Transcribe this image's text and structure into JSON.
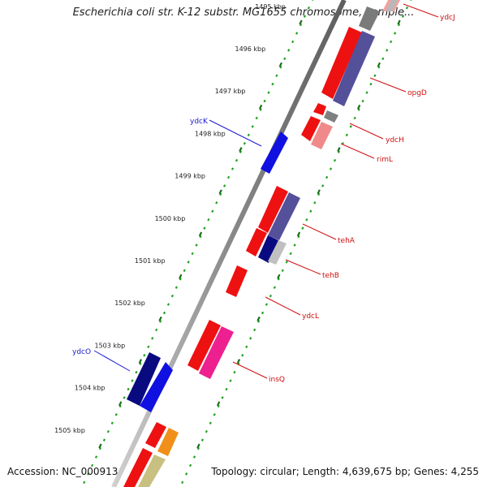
{
  "title": "Escherichia coli str. K-12 substr. MG1655 chromosome, comple...",
  "accession_label": "Accession: NC_000913",
  "summary_label": "Topology: circular; Length: 4,639,675 bp; Genes: 4,255",
  "colors": {
    "backbone": "#8a8a8a",
    "tick_major": "#1a6f1a",
    "tick_minor": "#1fa01f",
    "forward_gene": "#1010e0",
    "forward_gene_dark": "#0a0a80",
    "reverse_gene": "#ee1111",
    "reverse_gene_pink": "#f06a8a",
    "reverse_gene_slate": "#55509a",
    "reverse_gene_grey": "#888888",
    "reverse_gene_orange": "#f0901a",
    "reverse_gene_khaki": "#c8c080",
    "label_forward": "#1a1ad0",
    "label_reverse": "#d01010"
  },
  "kbp_labels": [
    {
      "text": "1495 kbp",
      "kbp": 1495
    },
    {
      "text": "1496 kbp",
      "kbp": 1496
    },
    {
      "text": "1497 kbp",
      "kbp": 1497
    },
    {
      "text": "1498 kbp",
      "kbp": 1498
    },
    {
      "text": "1499 kbp",
      "kbp": 1499
    },
    {
      "text": "1500 kbp",
      "kbp": 1500
    },
    {
      "text": "1501 kbp",
      "kbp": 1501
    },
    {
      "text": "1502 kbp",
      "kbp": 1502
    },
    {
      "text": "1503 kbp",
      "kbp": 1503
    },
    {
      "text": "1504 kbp",
      "kbp": 1504
    },
    {
      "text": "1505 kbp",
      "kbp": 1505
    }
  ],
  "gene_labels": [
    {
      "text": "ydcJ",
      "strand": "reverse"
    },
    {
      "text": "opgD",
      "strand": "reverse"
    },
    {
      "text": "ydcH",
      "strand": "reverse"
    },
    {
      "text": "rimL",
      "strand": "reverse"
    },
    {
      "text": "ydcK",
      "strand": "forward"
    },
    {
      "text": "tehA",
      "strand": "reverse"
    },
    {
      "text": "tehB",
      "strand": "reverse"
    },
    {
      "text": "ydcL",
      "strand": "reverse"
    },
    {
      "text": "ydcO",
      "strand": "forward"
    },
    {
      "text": "insQ",
      "strand": "reverse"
    }
  ]
}
